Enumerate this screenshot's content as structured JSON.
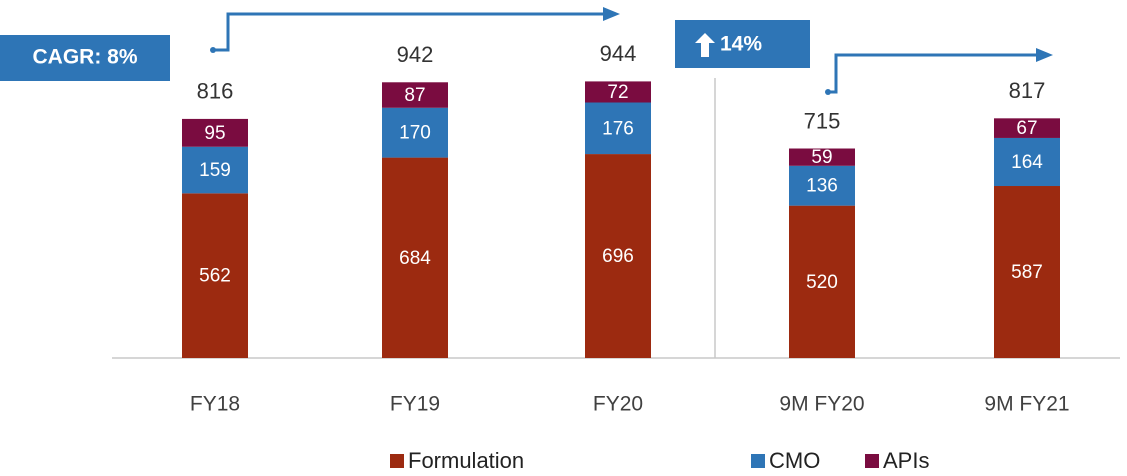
{
  "chart_data": {
    "type": "stacked_bar",
    "categories": [
      "FY18",
      "FY19",
      "FY20",
      "9M FY20",
      "9M FY21"
    ],
    "series": [
      {
        "name": "Formulation",
        "color": "#9c2a10",
        "values": [
          562,
          684,
          696,
          520,
          587
        ]
      },
      {
        "name": "CMO",
        "color": "#2e75b6",
        "values": [
          159,
          170,
          176,
          136,
          164
        ]
      },
      {
        "name": "APIs",
        "color": "#7a0c40",
        "values": [
          95,
          87,
          72,
          59,
          67
        ]
      }
    ],
    "totals": [
      816,
      942,
      944,
      715,
      817
    ],
    "annotations": [
      "CAGR: 8%",
      "14%"
    ]
  }
}
